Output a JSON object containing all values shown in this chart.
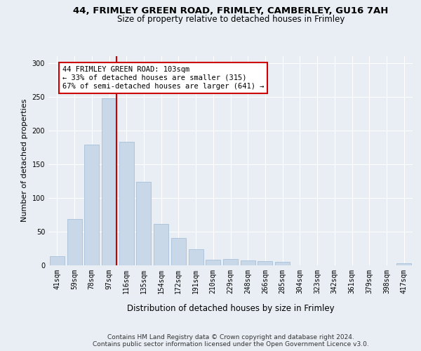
{
  "title_line1": "44, FRIMLEY GREEN ROAD, FRIMLEY, CAMBERLEY, GU16 7AH",
  "title_line2": "Size of property relative to detached houses in Frimley",
  "xlabel": "Distribution of detached houses by size in Frimley",
  "ylabel": "Number of detached properties",
  "bin_labels": [
    "41sqm",
    "59sqm",
    "78sqm",
    "97sqm",
    "116sqm",
    "135sqm",
    "154sqm",
    "172sqm",
    "191sqm",
    "210sqm",
    "229sqm",
    "248sqm",
    "266sqm",
    "285sqm",
    "304sqm",
    "323sqm",
    "342sqm",
    "361sqm",
    "379sqm",
    "398sqm",
    "417sqm"
  ],
  "bar_heights": [
    13,
    68,
    179,
    247,
    183,
    123,
    61,
    40,
    23,
    8,
    9,
    7,
    6,
    5,
    0,
    0,
    0,
    0,
    0,
    0,
    3
  ],
  "bar_color": "#c8d8e8",
  "bar_edgecolor": "#a8c0d8",
  "vline_color": "#cc0000",
  "vline_x": 3.43,
  "annotation_text": "44 FRIMLEY GREEN ROAD: 103sqm\n← 33% of detached houses are smaller (315)\n67% of semi-detached houses are larger (641) →",
  "annotation_box_color": "#ffffff",
  "annotation_box_edgecolor": "#cc0000",
  "ylim": [
    0,
    310
  ],
  "yticks": [
    0,
    50,
    100,
    150,
    200,
    250,
    300
  ],
  "footer_line1": "Contains HM Land Registry data © Crown copyright and database right 2024.",
  "footer_line2": "Contains public sector information licensed under the Open Government Licence v3.0.",
  "background_color": "#e8eef4",
  "plot_background_color": "#e8eef4",
  "grid_color": "#ffffff",
  "title_fontsize": 9.5,
  "subtitle_fontsize": 8.5,
  "ylabel_fontsize": 8,
  "xlabel_fontsize": 8.5,
  "tick_fontsize": 7,
  "annot_fontsize": 7.5,
  "footer_fontsize": 6.5
}
